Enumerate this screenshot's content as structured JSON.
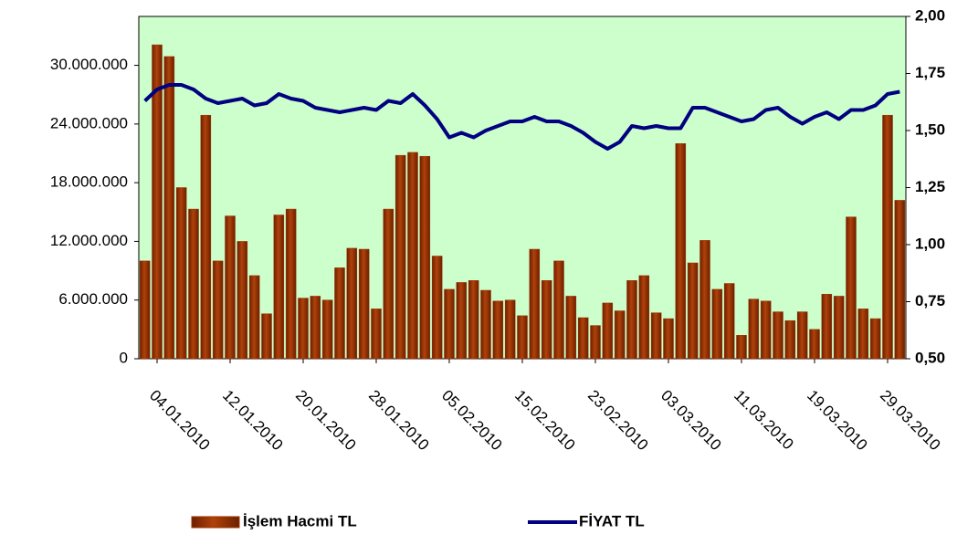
{
  "chart_data": {
    "type": "bar_line",
    "categories": [
      null,
      "04.01.2010",
      null,
      null,
      null,
      null,
      null,
      "12.01.2010",
      null,
      null,
      null,
      null,
      null,
      "20.01.2010",
      null,
      null,
      null,
      null,
      null,
      "28.01.2010",
      null,
      null,
      null,
      null,
      null,
      "05.02.2010",
      null,
      null,
      null,
      null,
      null,
      "15.02.2010",
      null,
      null,
      null,
      null,
      null,
      "23.02.2010",
      null,
      null,
      null,
      null,
      null,
      "03.03.2010",
      null,
      null,
      null,
      null,
      null,
      "11.03.2010",
      null,
      null,
      null,
      null,
      null,
      "19.03.2010",
      null,
      null,
      null,
      null,
      null,
      "29.03.2010",
      null
    ],
    "series": [
      {
        "name": "İşlem Hacmi TL",
        "color": "#993300",
        "type": "bar",
        "axis": "y",
        "values": [
          10000000,
          32100000,
          30900000,
          17500000,
          15300000,
          24900000,
          10000000,
          14600000,
          12000000,
          8500000,
          4600000,
          14700000,
          15300000,
          6200000,
          6400000,
          6000000,
          9300000,
          11300000,
          11200000,
          5100000,
          15300000,
          20800000,
          21100000,
          20700000,
          10500000,
          7100000,
          7800000,
          8000000,
          7000000,
          5900000,
          6000000,
          4400000,
          11200000,
          8000000,
          10000000,
          6400000,
          4200000,
          3400000,
          5700000,
          4900000,
          8000000,
          8500000,
          4700000,
          4100000,
          22000000,
          9800000,
          12100000,
          7100000,
          7700000,
          2400000,
          6100000,
          5900000,
          4800000,
          3900000,
          4800000,
          3000000,
          6600000,
          6400000,
          14500000,
          5100000,
          4100000,
          24900000,
          16200000
        ]
      },
      {
        "name": "FİYAT TL",
        "color": "#000080",
        "type": "line",
        "axis": "y2",
        "values": [
          1.63,
          1.68,
          1.7,
          1.7,
          1.68,
          1.64,
          1.62,
          1.63,
          1.64,
          1.61,
          1.62,
          1.66,
          1.64,
          1.63,
          1.6,
          1.59,
          1.58,
          1.59,
          1.6,
          1.59,
          1.63,
          1.62,
          1.66,
          1.61,
          1.55,
          1.47,
          1.49,
          1.47,
          1.5,
          1.52,
          1.54,
          1.54,
          1.56,
          1.54,
          1.54,
          1.52,
          1.49,
          1.45,
          1.42,
          1.45,
          1.52,
          1.51,
          1.52,
          1.51,
          1.51,
          1.6,
          1.6,
          1.58,
          1.56,
          1.54,
          1.55,
          1.59,
          1.6,
          1.56,
          1.53,
          1.56,
          1.58,
          1.55,
          1.59,
          1.59,
          1.61,
          1.66,
          1.67
        ]
      }
    ],
    "ylim": [
      0,
      35000000
    ],
    "yticks": [
      0,
      {
        "value": 6000000,
        "label": "6.000.000"
      },
      {
        "value": 12000000,
        "label": "12.000.000"
      },
      {
        "value": 18000000,
        "label": "18.000.000"
      },
      {
        "value": 24000000,
        "label": "24.000.000"
      },
      {
        "value": 30000000,
        "label": "30.000.000"
      }
    ],
    "y2lim": [
      0.5,
      2.0
    ],
    "y2ticks": [
      {
        "value": 0.5,
        "label": "0,50"
      },
      {
        "value": 0.75,
        "label": "0,75"
      },
      {
        "value": 1.0,
        "label": "1,00"
      },
      {
        "value": 1.25,
        "label": "1,25"
      },
      {
        "value": 1.5,
        "label": "1,50"
      },
      {
        "value": 1.75,
        "label": "1,75"
      },
      {
        "value": 2.0,
        "label": "2,00"
      }
    ],
    "plot_background": "#ccffcc",
    "legend": "bottom"
  }
}
